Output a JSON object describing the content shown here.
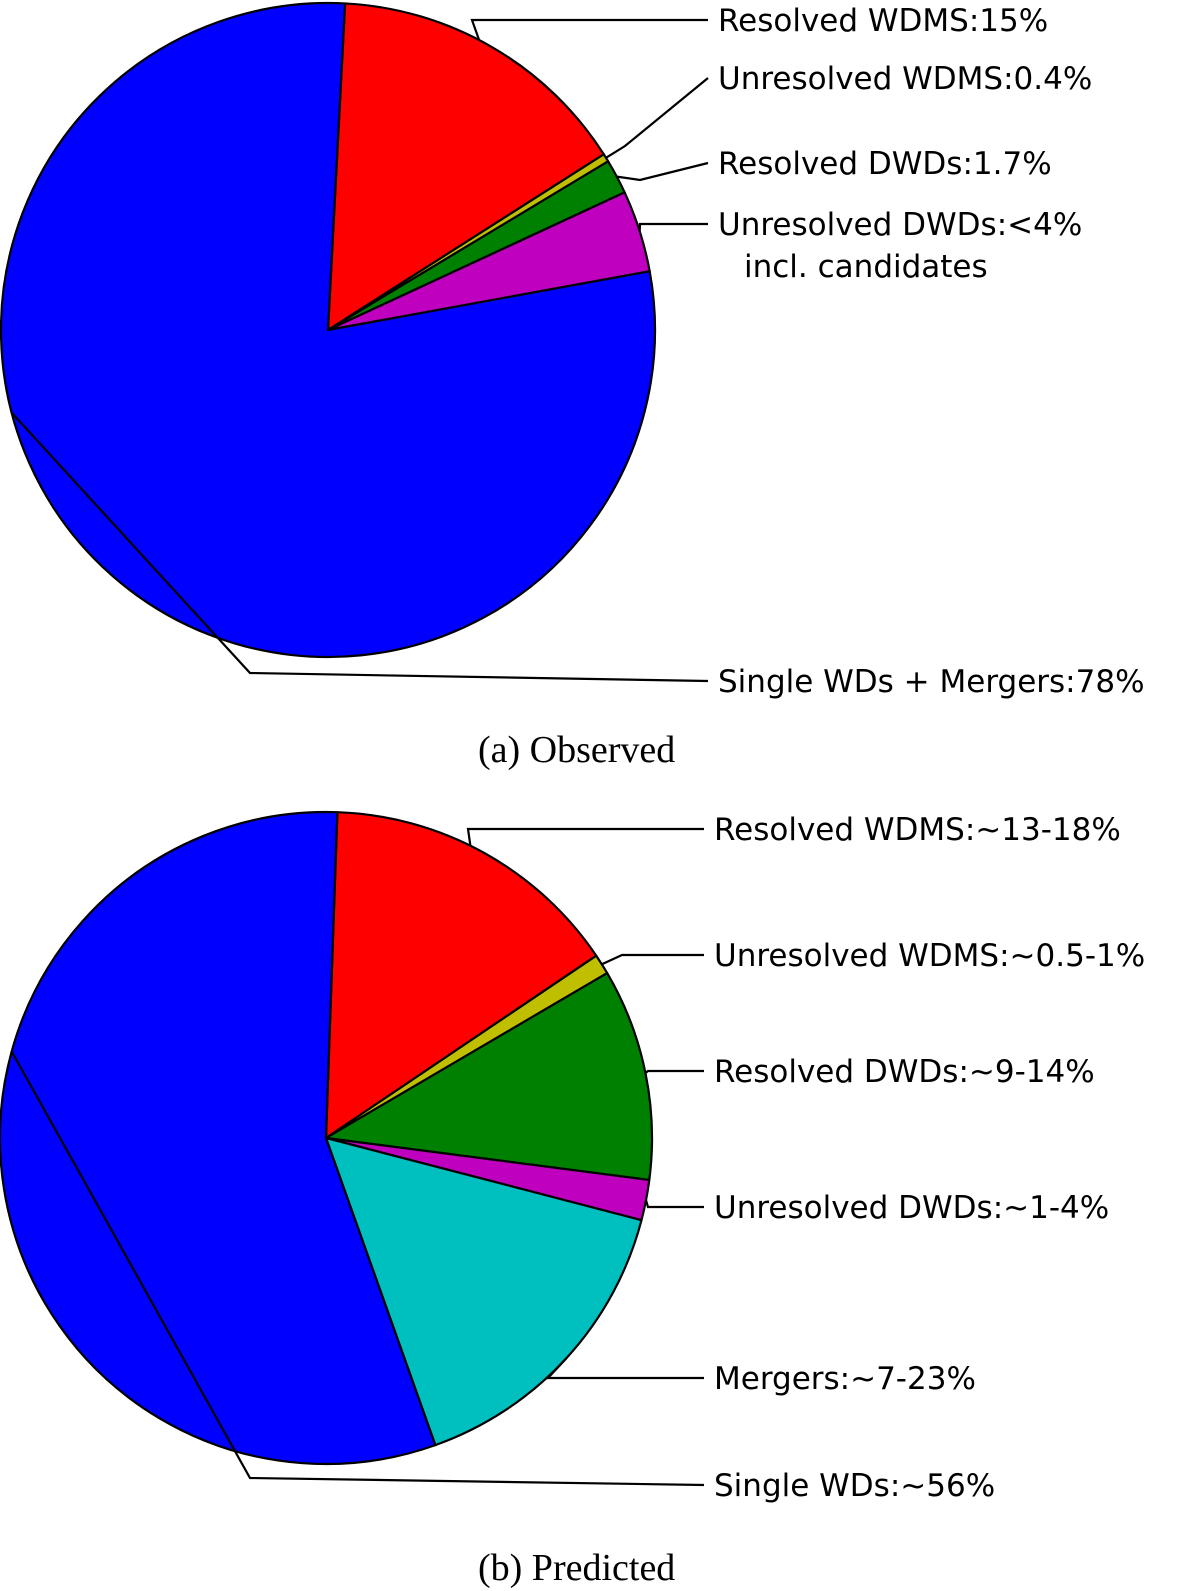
{
  "chart_data": [
    {
      "type": "pie",
      "caption": "(a)  Observed",
      "slices": [
        {
          "label": "Resolved WDMS:15%",
          "value": 15,
          "color": "#ff0000"
        },
        {
          "label": "Unresolved WDMS:0.4%",
          "value": 0.4,
          "color": "#bfbf00"
        },
        {
          "label": "Resolved DWDs:1.7%",
          "value": 1.7,
          "color": "#008000"
        },
        {
          "label": "Unresolved DWDs:<4%",
          "label_line2": "incl. candidates",
          "value": 4,
          "color": "#bf00bf"
        },
        {
          "label": "Single WDs + Mergers:78%",
          "value": 78,
          "color": "#0000ff"
        }
      ]
    },
    {
      "type": "pie",
      "caption": "(b)  Predicted",
      "slices": [
        {
          "label": "Resolved WDMS:~13-18%",
          "value": 15,
          "color": "#ff0000"
        },
        {
          "label": "Unresolved WDMS:~0.5-1%",
          "value": 1,
          "color": "#bfbf00"
        },
        {
          "label": "Resolved DWDs:~9-14%",
          "value": 10.5,
          "color": "#008000"
        },
        {
          "label": "Unresolved DWDs:~1-4%",
          "value": 2,
          "color": "#bf00bf"
        },
        {
          "label": "Mergers:~7-23%",
          "value": 15.5,
          "color": "#00bfbf"
        },
        {
          "label": "Single WDs:~56%",
          "value": 56,
          "color": "#0000ff"
        }
      ]
    }
  ]
}
